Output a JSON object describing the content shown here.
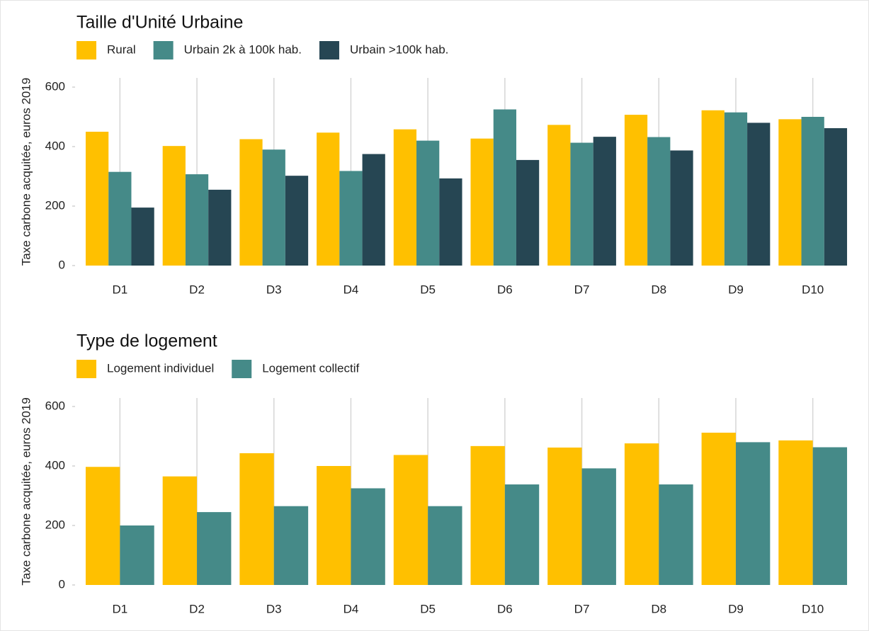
{
  "chart_data": [
    {
      "type": "bar",
      "title": "Taille d'Unité Urbaine",
      "y_label": "Taxe carbone acquitée, euros 2019",
      "categories": [
        "D1",
        "D2",
        "D3",
        "D4",
        "D5",
        "D6",
        "D7",
        "D8",
        "D9",
        "D10"
      ],
      "series": [
        {
          "name": "Rural",
          "color": "#ffc000",
          "values": [
            450,
            402,
            425,
            447,
            458,
            427,
            473,
            507,
            522,
            492
          ]
        },
        {
          "name": "Urbain 2k à 100k hab.",
          "color": "#458a88",
          "values": [
            315,
            307,
            390,
            318,
            420,
            525,
            413,
            432,
            515,
            500
          ]
        },
        {
          "name": "Urbain >100k hab.",
          "color": "#264653",
          "values": [
            195,
            255,
            302,
            375,
            293,
            355,
            433,
            387,
            480,
            462
          ]
        }
      ],
      "ylim": [
        0,
        600
      ],
      "yticks": [
        0,
        200,
        400,
        600
      ],
      "grid": true,
      "legend": "top"
    },
    {
      "type": "bar",
      "title": "Type de logement",
      "y_label": "Taxe carbone acquitée, euros 2019",
      "categories": [
        "D1",
        "D2",
        "D3",
        "D4",
        "D5",
        "D6",
        "D7",
        "D8",
        "D9",
        "D10"
      ],
      "series": [
        {
          "name": "Logement individuel",
          "color": "#ffc000",
          "values": [
            397,
            365,
            443,
            400,
            437,
            467,
            462,
            476,
            512,
            486
          ]
        },
        {
          "name": "Logement collectif",
          "color": "#458a88",
          "values": [
            200,
            245,
            265,
            325,
            265,
            338,
            392,
            338,
            480,
            463
          ]
        }
      ],
      "ylim": [
        0,
        600
      ],
      "yticks": [
        0,
        200,
        400,
        600
      ],
      "grid": true,
      "legend": "top"
    }
  ]
}
